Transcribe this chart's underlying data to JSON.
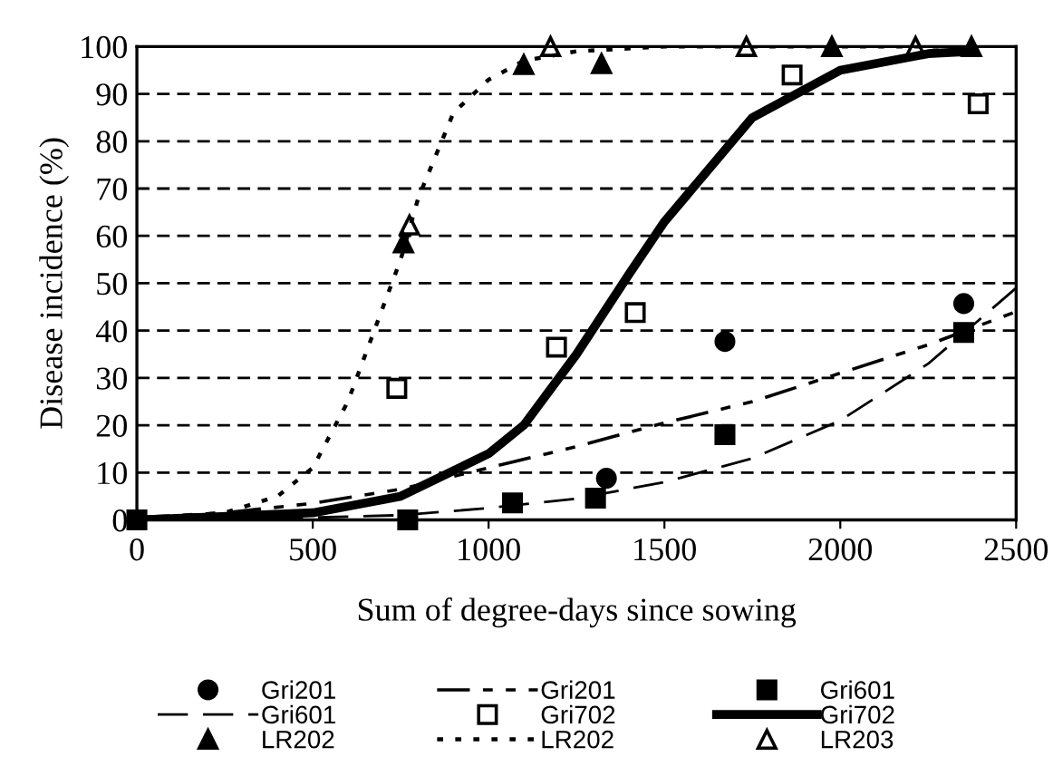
{
  "chart_data": {
    "type": "scatter",
    "xlabel": "Sum of degree-days since sowing",
    "ylabel": "Disease incidence (%)",
    "xlim": [
      0,
      2500
    ],
    "ylim": [
      0,
      100
    ],
    "xticks": [
      0,
      500,
      1000,
      1500,
      2000,
      2500
    ],
    "yticks": [
      0,
      10,
      20,
      30,
      40,
      50,
      60,
      70,
      80,
      90,
      100
    ],
    "grid": "y",
    "legend": "bottom",
    "series": [
      {
        "name": "Gri201",
        "marker": "circle",
        "color": "#000000",
        "x": [
          1335,
          1672,
          2351
        ],
        "values": [
          8.8,
          37.7,
          45.7
        ]
      },
      {
        "name": "Gri201",
        "type": "line",
        "line_style": "dashdot",
        "color": "#000000",
        "x": [
          0,
          250,
          500,
          750,
          1000,
          1250,
          1500,
          1750,
          2000,
          2250,
          2500
        ],
        "values": [
          0.5,
          1.5,
          3.5,
          6.5,
          11,
          15.5,
          20.5,
          25,
          31,
          37,
          44
        ]
      },
      {
        "name": "Gri601",
        "marker": "square",
        "color": "#000000",
        "x": [
          0,
          770,
          1068,
          1304,
          1672,
          2351
        ],
        "values": [
          0,
          0,
          3.6,
          4.6,
          18,
          39.6
        ]
      },
      {
        "name": "Gri601",
        "type": "line",
        "line_style": "dashed",
        "color": "#000000",
        "x": [
          0,
          500,
          750,
          1000,
          1250,
          1500,
          1750,
          2000,
          2250,
          2500
        ],
        "values": [
          0,
          0.5,
          1,
          2.5,
          4.5,
          8,
          13,
          21,
          33,
          49
        ]
      },
      {
        "name": "Gri702",
        "marker": "square",
        "color": "#000000",
        "x": [
          739,
          1193,
          1417,
          1863,
          2392
        ],
        "values": [
          27.8,
          36.5,
          43.8,
          94,
          87.9
        ]
      },
      {
        "name": "Gri702",
        "type": "line",
        "line_style": "solid",
        "color": "#000000",
        "x": [
          0,
          500,
          750,
          1000,
          1100,
          1250,
          1400,
          1500,
          1750,
          2000,
          2250,
          2375
        ],
        "values": [
          0,
          1.5,
          5,
          14,
          20,
          35,
          52,
          63,
          85,
          95,
          98.5,
          99
        ]
      },
      {
        "name": "LR202",
        "marker": "triangle",
        "color": "#000000",
        "x": [
          758,
          1100,
          1321,
          1976,
          2373
        ],
        "values": [
          58.5,
          96.2,
          96.4,
          100,
          100
        ]
      },
      {
        "name": "LR202",
        "type": "line",
        "line_style": "dotted",
        "color": "#000000",
        "x": [
          0,
          250,
          400,
          500,
          600,
          700,
          750,
          800,
          900,
          1000,
          1100,
          1250,
          1500,
          2375
        ],
        "values": [
          0,
          1.5,
          5,
          11,
          25,
          45,
          55,
          68,
          86,
          93,
          97,
          99,
          100,
          100
        ]
      },
      {
        "name": "LR203",
        "marker": "triangle",
        "color": "#000000",
        "x": [
          775,
          1176,
          1733,
          2214
        ],
        "values": [
          62.3,
          100,
          100,
          100
        ]
      }
    ]
  }
}
